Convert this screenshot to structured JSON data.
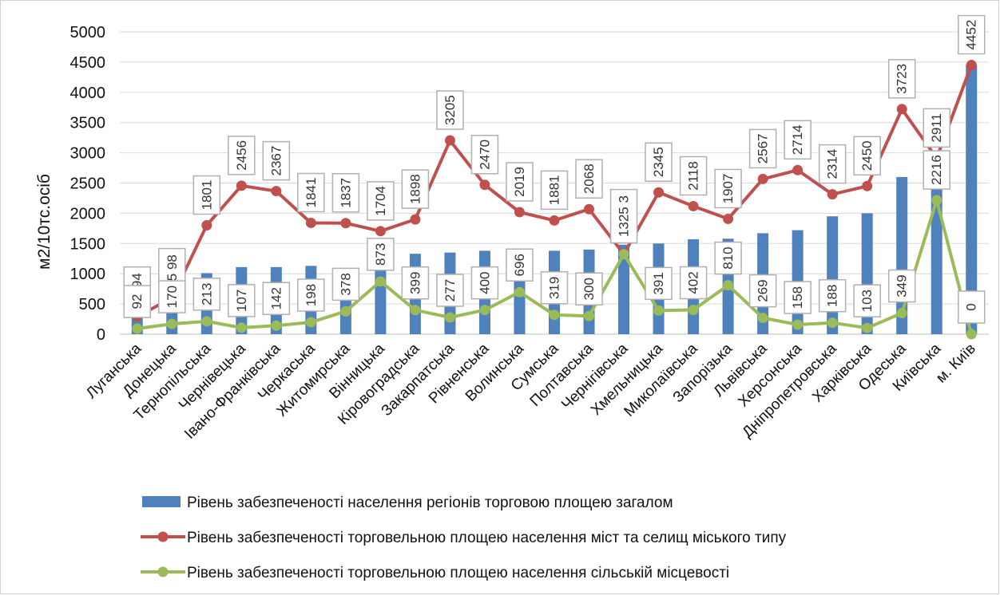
{
  "chart_data": {
    "type": "bar",
    "title": "",
    "xlabel": "",
    "ylabel": "м2/10тс.осіб",
    "ylim": [
      0,
      5000
    ],
    "yticks": [
      0,
      500,
      1000,
      1500,
      2000,
      2500,
      3000,
      3500,
      4000,
      4500,
      5000
    ],
    "grid": true,
    "legend_position": "bottom",
    "categories": [
      "Луганська",
      "Донецька",
      "Тернопільська",
      "Чернівецька",
      "Івано-Франківська",
      "Черкаська",
      "Житомирська",
      "Вінницька",
      "Кіровоградська",
      "Закарпатська",
      "Рівненська",
      "Волинська",
      "Сумська",
      "Полтавська",
      "Чернігівська",
      "Хмельницька",
      "Миколаївська",
      "Запорізька",
      "Львівська",
      "Херсонська",
      "Дніпропетровська",
      "Харківська",
      "Одеська",
      "Київська",
      "м. Київ"
    ],
    "series": [
      {
        "name": "Рівень забезпеченості населення регіонів торговою площею загалом",
        "kind": "bar",
        "color": "#4f81bd",
        "values": [
          280,
          620,
          1010,
          1110,
          1110,
          1130,
          900,
          1180,
          1330,
          1350,
          1380,
          1200,
          1380,
          1400,
          1480,
          1500,
          1570,
          1580,
          1670,
          1720,
          1950,
          2000,
          2600,
          2700,
          4452
        ]
      },
      {
        "name": "Рівень забезпеченості торговельною площею населення  міст та селищ міського типу",
        "kind": "line",
        "color": "#c0504d",
        "values": [
          294,
          598,
          1801,
          2456,
          2367,
          1841,
          1837,
          1704,
          1898,
          3205,
          2470,
          2019,
          1881,
          2068,
          1325,
          2345,
          2118,
          1907,
          2567,
          2714,
          2314,
          2450,
          3723,
          2911,
          4452
        ],
        "labels": [
          "2 94",
          "5 98",
          "1801",
          "2456",
          "2367",
          "1841",
          "1837",
          "1704",
          "1898",
          "3205",
          "2470",
          "2019",
          "1881",
          "2068",
          "1325 3",
          "2345",
          "2118",
          "1907",
          "2567",
          "2714",
          "2314",
          "2450",
          "3723",
          "2911",
          "4452"
        ]
      },
      {
        "name": "Рівень забезпеченості торговельною площею населення  сільській місцевості",
        "kind": "line",
        "color": "#9bbb59",
        "values": [
          92,
          170,
          213,
          107,
          142,
          198,
          378,
          873,
          399,
          277,
          400,
          696,
          319,
          300,
          1325,
          391,
          402,
          810,
          269,
          158,
          188,
          103,
          349,
          2216,
          0
        ],
        "labels": [
          "92",
          "170",
          "213",
          "107",
          "142",
          "198",
          "378",
          "873",
          "399",
          "277",
          "400",
          "696",
          "319",
          "300",
          "",
          "391",
          "402",
          "810",
          "269",
          "158",
          "188",
          "103",
          "349",
          "2216",
          "0"
        ]
      }
    ]
  }
}
